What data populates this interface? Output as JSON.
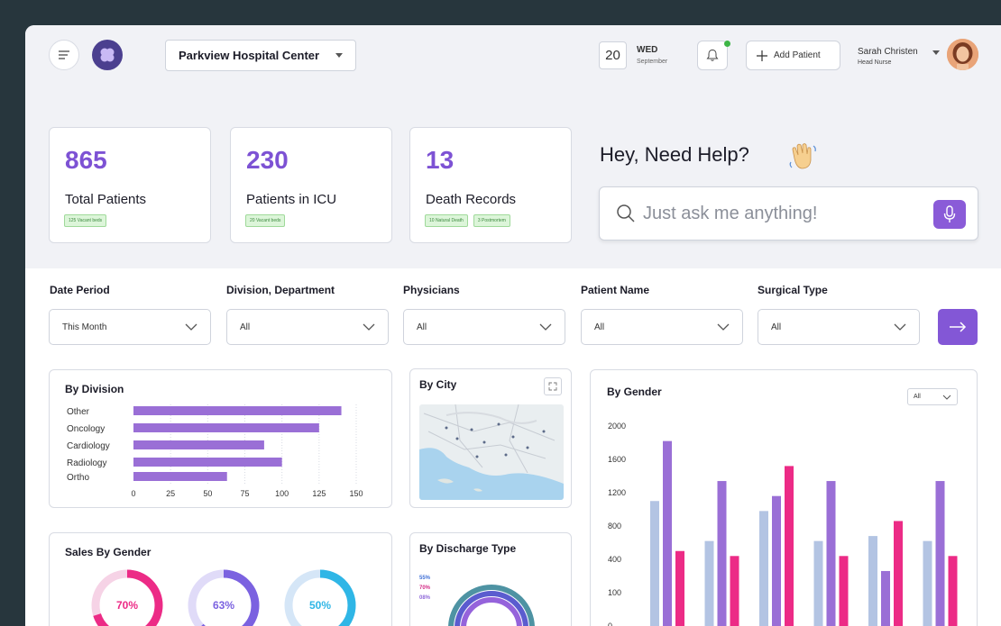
{
  "header": {
    "hospital": "Parkview Hospital Center",
    "date_num": "20",
    "date_day": "WED",
    "date_month": "September",
    "add_patient": "Add Patient",
    "user_name": "Sarah Christen",
    "user_role": "Head Nurse"
  },
  "stats": [
    {
      "value": "865",
      "label": "Total Patients",
      "chips": [
        "125 Vacant beds"
      ]
    },
    {
      "value": "230",
      "label": "Patients in ICU",
      "chips": [
        "20 Vacant beds"
      ]
    },
    {
      "value": "13",
      "label": "Death Records",
      "chips": [
        "10 Natural Death",
        "3 Postmortem"
      ]
    }
  ],
  "help": {
    "title": "Hey, Need Help?",
    "placeholder": "Just ask me anything!"
  },
  "filters": [
    {
      "label": "Date Period",
      "value": "This Month"
    },
    {
      "label": "Division, Department",
      "value": "All"
    },
    {
      "label": "Physicians",
      "value": "All"
    },
    {
      "label": "Patient Name",
      "value": "All"
    },
    {
      "label": "Surgical Type",
      "value": "All"
    }
  ],
  "division_card": {
    "title": "By Division"
  },
  "city_card": {
    "title": "By City"
  },
  "gender_card": {
    "title": "By Gender",
    "select_value": "All"
  },
  "sales_card": {
    "title": "Sales By Gender"
  },
  "discharge_card": {
    "title": "By Discharge Type",
    "labels": [
      "55%",
      "70%",
      "08%"
    ]
  },
  "colors": {
    "accent": "#8357d6",
    "bar_blue": "#b3c4e3",
    "bar_purple": "#9a6fd6",
    "bar_pink": "#ec2b86"
  },
  "chart_data": [
    {
      "type": "bar",
      "orientation": "horizontal",
      "title": "By Division",
      "categories": [
        "Other",
        "Oncology",
        "Cardiology",
        "Radiology",
        "Ortho"
      ],
      "values": [
        140,
        125,
        88,
        100,
        63
      ],
      "xticks": [
        "0",
        "25",
        "50",
        "75",
        "100",
        "125",
        "150"
      ],
      "xlim": [
        0,
        150
      ]
    },
    {
      "type": "bar",
      "title": "By Gender",
      "yticks": [
        "2000",
        "1600",
        "1200",
        "800",
        "400",
        "100",
        "0"
      ],
      "groups": 6,
      "series": [
        {
          "values": [
            1250,
            850,
            1150,
            850,
            900,
            850
          ]
        },
        {
          "values": [
            1850,
            1450,
            1300,
            1450,
            550,
            1450
          ]
        },
        {
          "values": [
            750,
            700,
            1600,
            700,
            1050,
            700
          ]
        }
      ]
    },
    {
      "type": "pie",
      "title": "Sales By Gender",
      "values": [
        70,
        63,
        50
      ],
      "labels": [
        "70%",
        "63%",
        "50%"
      ]
    }
  ]
}
